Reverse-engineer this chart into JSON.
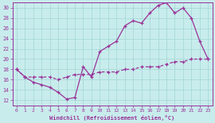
{
  "xlabel": "Windchill (Refroidissement éolien,°C)",
  "bg_color": "#c8ecec",
  "grid_color": "#a8d8d8",
  "line_color": "#993399",
  "xlim": [
    -0.5,
    23.5
  ],
  "ylim": [
    11,
    31
  ],
  "yticks": [
    12,
    14,
    16,
    18,
    20,
    22,
    24,
    26,
    28,
    30
  ],
  "xticks": [
    0,
    1,
    2,
    3,
    4,
    5,
    6,
    7,
    8,
    9,
    10,
    11,
    12,
    13,
    14,
    15,
    16,
    17,
    18,
    19,
    20,
    21,
    22,
    23
  ],
  "upper_x": [
    0,
    1,
    2,
    3,
    4,
    5,
    6,
    7,
    8,
    9,
    10,
    11,
    12,
    13,
    14,
    15,
    16,
    17,
    18,
    19,
    20,
    21,
    22,
    23
  ],
  "upper_y": [
    18.0,
    16.5,
    15.5,
    15.0,
    14.5,
    13.5,
    12.2,
    12.5,
    18.5,
    16.5,
    21.5,
    22.5,
    23.5,
    26.5,
    27.5,
    27.0,
    29.0,
    30.5,
    31.0,
    29.0,
    30.0,
    28.0,
    23.5,
    20.0
  ],
  "lower_x": [
    0,
    1,
    2,
    3,
    4,
    5,
    6,
    7,
    8,
    9,
    10,
    11,
    12,
    13,
    14,
    15,
    16,
    17,
    18,
    19,
    20,
    21,
    22,
    23
  ],
  "lower_y": [
    18.0,
    16.5,
    16.5,
    16.5,
    16.5,
    16.0,
    16.5,
    17.0,
    17.0,
    17.0,
    17.5,
    17.5,
    17.5,
    18.0,
    18.0,
    18.5,
    18.5,
    18.5,
    19.0,
    19.5,
    19.5,
    20.0,
    20.0,
    20.0
  ]
}
